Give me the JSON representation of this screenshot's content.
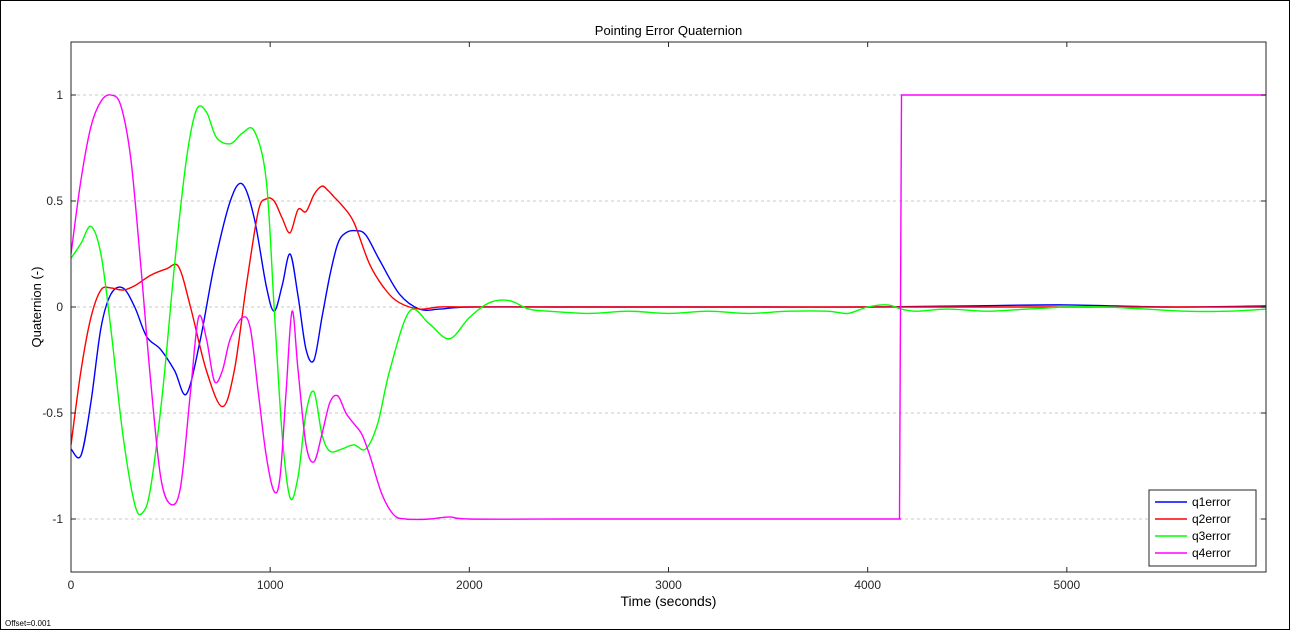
{
  "chart_data": {
    "type": "line",
    "title": "Pointing Error Quaternion",
    "xlabel": "Time (seconds)",
    "ylabel": "Quaternion (-)",
    "xlim": [
      0,
      6000
    ],
    "ylim": [
      -1.25,
      1.25
    ],
    "xticks": [
      0,
      1000,
      2000,
      3000,
      4000,
      5000
    ],
    "yticks": [
      -1,
      -0.5,
      0,
      0.5,
      1
    ],
    "grid_y": "dashed",
    "legend_position": "bottom-right",
    "series": [
      {
        "name": "q1error",
        "color": "#0000ff",
        "x": [
          0,
          50,
          100,
          150,
          200,
          260,
          320,
          380,
          450,
          520,
          580,
          650,
          720,
          800,
          860,
          920,
          980,
          1020,
          1060,
          1100,
          1140,
          1180,
          1220,
          1260,
          1300,
          1340,
          1380,
          1430,
          1480,
          1550,
          1650,
          1750,
          1850,
          2000,
          2500,
          3000,
          3500,
          4000,
          4500,
          5000,
          5500,
          6000
        ],
        "y": [
          -0.67,
          -0.7,
          -0.45,
          -0.1,
          0.06,
          0.09,
          0.0,
          -0.14,
          -0.2,
          -0.3,
          -0.41,
          -0.15,
          0.2,
          0.5,
          0.58,
          0.42,
          0.1,
          -0.02,
          0.1,
          0.25,
          0.05,
          -0.2,
          -0.25,
          -0.05,
          0.15,
          0.3,
          0.35,
          0.36,
          0.34,
          0.22,
          0.06,
          -0.01,
          -0.01,
          0.0,
          0.0,
          0.0,
          0.0,
          0.0,
          0.005,
          0.01,
          0.0,
          0.005
        ]
      },
      {
        "name": "q2error",
        "color": "#ff0000",
        "x": [
          0,
          50,
          100,
          150,
          200,
          260,
          320,
          400,
          480,
          540,
          600,
          680,
          760,
          820,
          880,
          940,
          980,
          1020,
          1060,
          1100,
          1140,
          1180,
          1220,
          1260,
          1290,
          1320,
          1360,
          1420,
          1500,
          1580,
          1650,
          1750,
          1850,
          2000,
          2500,
          3000,
          3500,
          4000,
          5000,
          6000
        ],
        "y": [
          -0.65,
          -0.3,
          -0.05,
          0.08,
          0.09,
          0.08,
          0.1,
          0.15,
          0.18,
          0.19,
          0.0,
          -0.3,
          -0.47,
          -0.3,
          0.1,
          0.45,
          0.51,
          0.5,
          0.42,
          0.35,
          0.46,
          0.45,
          0.53,
          0.57,
          0.55,
          0.52,
          0.48,
          0.4,
          0.2,
          0.08,
          0.02,
          -0.01,
          0.0,
          0.0,
          0.0,
          0.0,
          0.0,
          0.0,
          0.0,
          0.0
        ]
      },
      {
        "name": "q3error",
        "color": "#00ff00",
        "x": [
          0,
          50,
          100,
          150,
          200,
          260,
          320,
          360,
          400,
          460,
          520,
          580,
          630,
          680,
          730,
          800,
          860,
          920,
          980,
          1020,
          1060,
          1100,
          1140,
          1180,
          1220,
          1260,
          1300,
          1360,
          1420,
          1480,
          1540,
          1600,
          1700,
          1800,
          1900,
          2000,
          2100,
          2200,
          2300,
          2400,
          2600,
          2800,
          3000,
          3200,
          3400,
          3600,
          3800,
          3900,
          4000,
          4100,
          4170,
          4250,
          4400,
          4600,
          4800,
          5000,
          5200,
          5400,
          5600,
          5800,
          6000
        ],
        "y": [
          0.23,
          0.3,
          0.38,
          0.25,
          -0.1,
          -0.6,
          -0.93,
          -0.97,
          -0.85,
          -0.4,
          0.2,
          0.7,
          0.93,
          0.92,
          0.8,
          0.77,
          0.82,
          0.83,
          0.6,
          0.0,
          -0.6,
          -0.9,
          -0.8,
          -0.5,
          -0.4,
          -0.6,
          -0.68,
          -0.67,
          -0.65,
          -0.67,
          -0.55,
          -0.3,
          -0.02,
          -0.08,
          -0.15,
          -0.05,
          0.02,
          0.03,
          -0.01,
          -0.02,
          -0.03,
          -0.02,
          -0.03,
          -0.02,
          -0.03,
          -0.02,
          -0.02,
          -0.03,
          0.0,
          0.01,
          -0.01,
          -0.02,
          -0.01,
          -0.02,
          -0.01,
          0.0,
          0.0,
          -0.01,
          -0.02,
          -0.02,
          -0.01
        ]
      },
      {
        "name": "q4error",
        "color": "#ff00ff",
        "x": [
          0,
          50,
          100,
          150,
          200,
          250,
          300,
          350,
          400,
          450,
          500,
          550,
          600,
          640,
          680,
          720,
          760,
          800,
          860,
          900,
          940,
          980,
          1020,
          1050,
          1080,
          1110,
          1140,
          1180,
          1220,
          1260,
          1300,
          1340,
          1380,
          1420,
          1460,
          1500,
          1560,
          1620,
          1680,
          1800,
          1900,
          2000,
          2500,
          3000,
          3500,
          4000,
          4150,
          4160,
          4170,
          4500,
          5000,
          5500,
          6000
        ],
        "y": [
          0.25,
          0.6,
          0.85,
          0.97,
          1.0,
          0.95,
          0.7,
          0.2,
          -0.35,
          -0.8,
          -0.93,
          -0.85,
          -0.4,
          -0.05,
          -0.15,
          -0.35,
          -0.3,
          -0.15,
          -0.05,
          -0.1,
          -0.4,
          -0.7,
          -0.87,
          -0.8,
          -0.4,
          -0.02,
          -0.3,
          -0.65,
          -0.73,
          -0.6,
          -0.45,
          -0.42,
          -0.5,
          -0.55,
          -0.6,
          -0.7,
          -0.88,
          -0.98,
          -1.0,
          -1.0,
          -0.99,
          -1.0,
          -1.0,
          -1.0,
          -1.0,
          -1.0,
          -1.0,
          -1.0,
          1.0,
          1.0,
          1.0,
          1.0,
          1.0
        ]
      }
    ]
  },
  "footer": {
    "offset_text": "Offset=0.001"
  }
}
